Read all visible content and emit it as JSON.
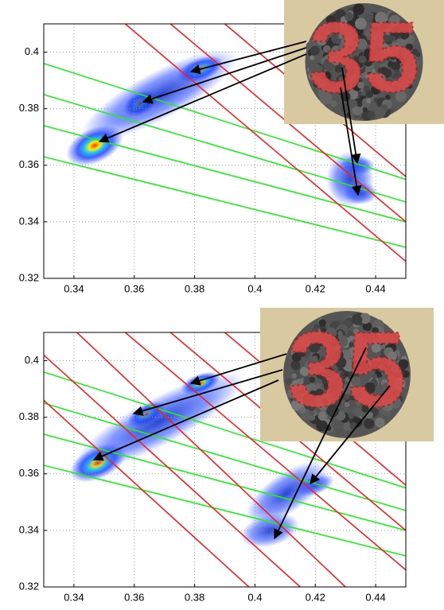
{
  "chart_data": [
    {
      "type": "line",
      "xlim": [
        0.33,
        0.45
      ],
      "ylim": [
        0.32,
        0.41
      ],
      "xticks": [
        0.34,
        0.36,
        0.38,
        0.4,
        0.42,
        0.44
      ],
      "yticks": [
        0.32,
        0.34,
        0.36,
        0.38,
        0.4
      ],
      "grid": true,
      "inset_label": "35",
      "series": [
        {
          "color": "#22ee22",
          "x": [
            0.33,
            0.45
          ],
          "values": [
            0.396,
            0.355
          ]
        },
        {
          "color": "#22ee22",
          "x": [
            0.33,
            0.45
          ],
          "values": [
            0.385,
            0.347
          ]
        },
        {
          "color": "#22ee22",
          "x": [
            0.33,
            0.45
          ],
          "values": [
            0.374,
            0.34
          ]
        },
        {
          "color": "#22ee22",
          "x": [
            0.33,
            0.45
          ],
          "values": [
            0.363,
            0.331
          ]
        },
        {
          "color": "#ee2222",
          "x": [
            0.357,
            0.45
          ],
          "values": [
            0.41,
            0.326
          ]
        },
        {
          "color": "#ee2222",
          "x": [
            0.372,
            0.45
          ],
          "values": [
            0.41,
            0.34
          ]
        },
        {
          "color": "#ee2222",
          "x": [
            0.39,
            0.45
          ],
          "values": [
            0.41,
            0.356
          ]
        }
      ]
    },
    {
      "type": "line",
      "xlim": [
        0.33,
        0.45
      ],
      "ylim": [
        0.32,
        0.41
      ],
      "xticks": [
        0.34,
        0.36,
        0.38,
        0.4,
        0.42,
        0.44
      ],
      "yticks": [
        0.32,
        0.34,
        0.36,
        0.38,
        0.4
      ],
      "grid": true,
      "inset_label": "35",
      "series": [
        {
          "color": "#22ee22",
          "x": [
            0.33,
            0.45
          ],
          "values": [
            0.396,
            0.355
          ]
        },
        {
          "color": "#22ee22",
          "x": [
            0.33,
            0.45
          ],
          "values": [
            0.385,
            0.347
          ]
        },
        {
          "color": "#22ee22",
          "x": [
            0.33,
            0.45
          ],
          "values": [
            0.374,
            0.34
          ]
        },
        {
          "color": "#22ee22",
          "x": [
            0.33,
            0.45
          ],
          "values": [
            0.363,
            0.331
          ]
        },
        {
          "color": "#ee2222",
          "x": [
            0.33,
            0.415
          ],
          "values": [
            0.402,
            0.32
          ]
        },
        {
          "color": "#ee2222",
          "x": [
            0.33,
            0.398
          ],
          "values": [
            0.386,
            0.32
          ]
        },
        {
          "color": "#ee2222",
          "x": [
            0.341,
            0.43
          ],
          "values": [
            0.41,
            0.32
          ]
        },
        {
          "color": "#ee2222",
          "x": [
            0.357,
            0.45
          ],
          "values": [
            0.41,
            0.326
          ]
        },
        {
          "color": "#ee2222",
          "x": [
            0.372,
            0.45
          ],
          "values": [
            0.41,
            0.34
          ]
        },
        {
          "color": "#ee2222",
          "x": [
            0.39,
            0.45
          ],
          "values": [
            0.41,
            0.356
          ]
        }
      ]
    }
  ]
}
